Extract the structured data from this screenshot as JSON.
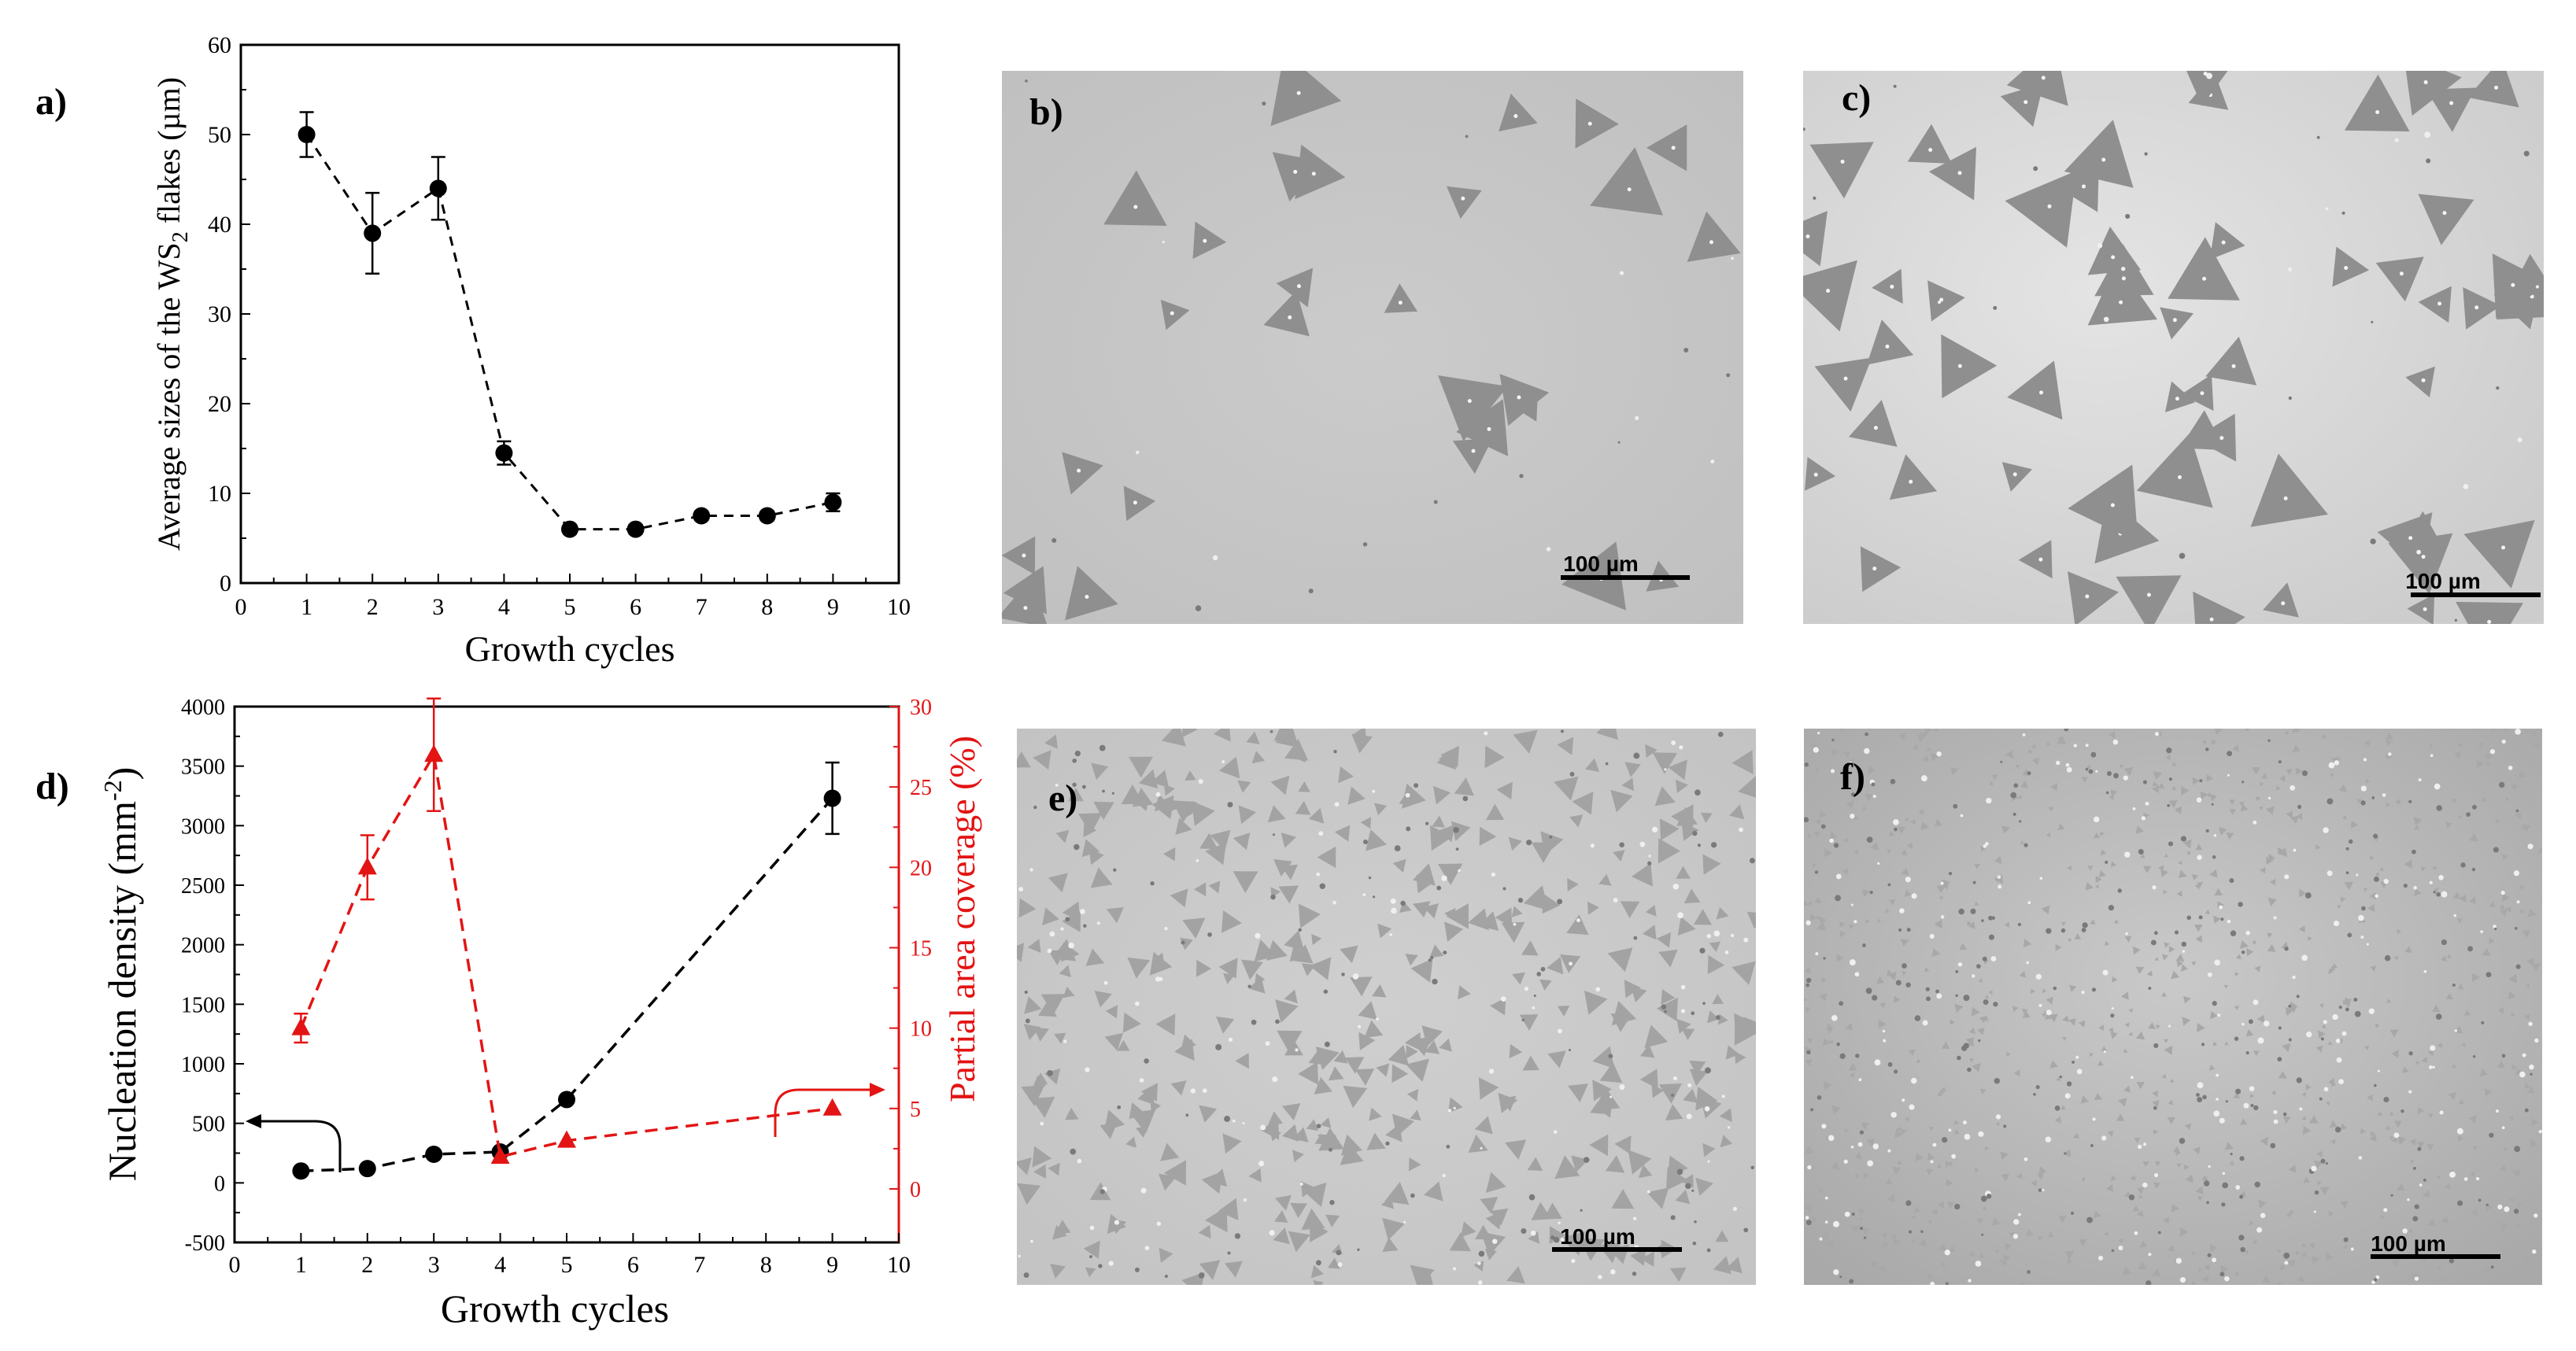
{
  "panel_labels": {
    "a": "a)",
    "b": "b)",
    "c": "c)",
    "d": "d)",
    "e": "e)",
    "f": "f)"
  },
  "colors": {
    "black_series": "#000000",
    "red_series": "#e31414",
    "micrograph_bg": "#c6c6c6",
    "flake": "#8f8f8f"
  },
  "scale_bar_label": "100 µm",
  "micrographs": {
    "b": {
      "flake_size": "large",
      "flake_density": "low"
    },
    "c": {
      "flake_size": "large",
      "flake_density": "medium"
    },
    "e": {
      "flake_size": "small",
      "flake_density": "high"
    },
    "f": {
      "flake_size": "very small",
      "flake_density": "very high"
    }
  },
  "chart_data": [
    {
      "type": "scatter",
      "title": "",
      "xlabel": "Growth cycles",
      "ylabel": "Average sizes of the WS2 flakes (µm)",
      "ylabel_parts": {
        "pre": "Average sizes of the WS",
        "sub": "2",
        "post": " flakes (µm)"
      },
      "xlim": [
        0,
        10
      ],
      "ylim": [
        0,
        60
      ],
      "xticks": [
        "0",
        "1",
        "2",
        "3",
        "4",
        "5",
        "6",
        "7",
        "8",
        "9",
        "10"
      ],
      "yticks": [
        "0",
        "10",
        "20",
        "30",
        "40",
        "50",
        "60"
      ],
      "line_style": "dashed",
      "series": [
        {
          "x": [
            1,
            2,
            3,
            4,
            5,
            6,
            7,
            8,
            9
          ],
          "y": [
            50,
            39,
            44,
            14.5,
            6,
            6,
            7.5,
            7.5,
            9
          ],
          "err": [
            2.5,
            4.5,
            3.5,
            1.3,
            0.5,
            0.5,
            0.5,
            0.5,
            1.0
          ],
          "marker": "circle",
          "color": "#000000"
        }
      ]
    },
    {
      "type": "scatter",
      "title": "",
      "xlabel": "Growth cycles",
      "ylabel": "Nucleation density (mm-2)",
      "ylabel_parts": {
        "pre": "Nucleation density (mm",
        "sup": "-2",
        "post": ")"
      },
      "y2label": "Partial area coverage (%)",
      "xlim": [
        0,
        10
      ],
      "ylim": [
        -500,
        4000
      ],
      "y2lim": [
        -3.33,
        30
      ],
      "xticks": [
        "0",
        "1",
        "2",
        "3",
        "4",
        "5",
        "6",
        "7",
        "8",
        "9",
        "10"
      ],
      "yticks": [
        "-500",
        "0",
        "500",
        "1000",
        "1500",
        "2000",
        "2500",
        "3000",
        "3500",
        "4000"
      ],
      "y2ticks": [
        "0",
        "5",
        "10",
        "15",
        "20",
        "25",
        "30"
      ],
      "line_style": "dashed",
      "series": [
        {
          "axis": "left",
          "x": [
            1,
            2,
            3,
            4,
            5,
            9
          ],
          "y": [
            100,
            120,
            240,
            260,
            700,
            3230
          ],
          "err": [
            0,
            0,
            0,
            0,
            0,
            300
          ],
          "marker": "circle",
          "color": "#000000"
        },
        {
          "axis": "right",
          "x": [
            1,
            2,
            3,
            4,
            5,
            9
          ],
          "y": [
            10,
            20,
            27,
            2,
            3,
            5
          ],
          "err": [
            0.9,
            2.0,
            3.5,
            0,
            0,
            0
          ],
          "marker": "triangle",
          "color": "#e31414"
        }
      ]
    }
  ]
}
